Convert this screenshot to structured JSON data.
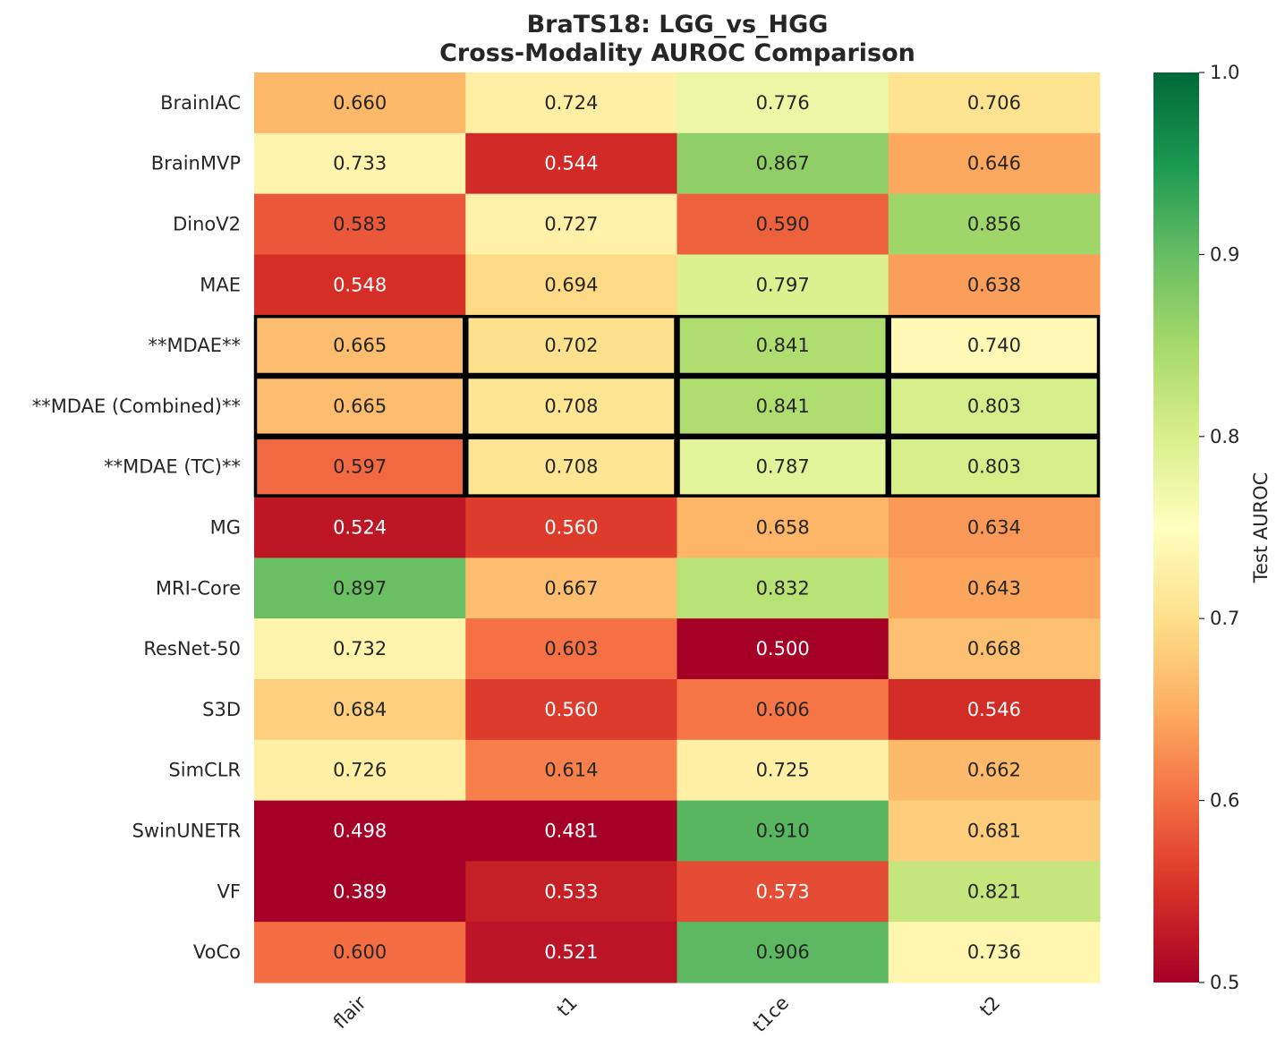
{
  "chart_data": {
    "type": "heatmap",
    "title_line1": "BraTS18: LGG_vs_HGG",
    "title_line2": "Cross-Modality AUROC Comparison",
    "columns": [
      "flair",
      "t1",
      "t1ce",
      "t2"
    ],
    "rows": [
      "BrainIAC",
      "BrainMVP",
      "DinoV2",
      "MAE",
      "**MDAE**",
      "**MDAE (Combined)**",
      "**MDAE (TC)**",
      "MG",
      "MRI-Core",
      "ResNet-50",
      "S3D",
      "SimCLR",
      "SwinUNETR",
      "VF",
      "VoCo"
    ],
    "values": [
      [
        0.66,
        0.724,
        0.776,
        0.706
      ],
      [
        0.733,
        0.544,
        0.867,
        0.646
      ],
      [
        0.583,
        0.727,
        0.59,
        0.856
      ],
      [
        0.548,
        0.694,
        0.797,
        0.638
      ],
      [
        0.665,
        0.702,
        0.841,
        0.74
      ],
      [
        0.665,
        0.708,
        0.841,
        0.803
      ],
      [
        0.597,
        0.708,
        0.787,
        0.803
      ],
      [
        0.524,
        0.56,
        0.658,
        0.634
      ],
      [
        0.897,
        0.667,
        0.832,
        0.643
      ],
      [
        0.732,
        0.603,
        0.5,
        0.668
      ],
      [
        0.684,
        0.56,
        0.606,
        0.546
      ],
      [
        0.726,
        0.614,
        0.725,
        0.662
      ],
      [
        0.498,
        0.481,
        0.91,
        0.681
      ],
      [
        0.389,
        0.533,
        0.573,
        0.821
      ],
      [
        0.6,
        0.521,
        0.906,
        0.736
      ]
    ],
    "value_format": "0.000",
    "highlighted_rows": [
      "**MDAE**",
      "**MDAE (Combined)**",
      "**MDAE (TC)**"
    ],
    "colormap": "RdYlGn",
    "color_range": [
      0.5,
      1.0
    ],
    "colorbar": {
      "label": "Test AUROC",
      "ticks": [
        "0.5",
        "0.6",
        "0.7",
        "0.8",
        "0.9",
        "1.0"
      ],
      "tick_values": [
        0.5,
        0.6,
        0.7,
        0.8,
        0.9,
        1.0
      ]
    },
    "highlight_color": "#000000",
    "text_color_dark": "#262626",
    "text_color_light": "#ffffff"
  }
}
